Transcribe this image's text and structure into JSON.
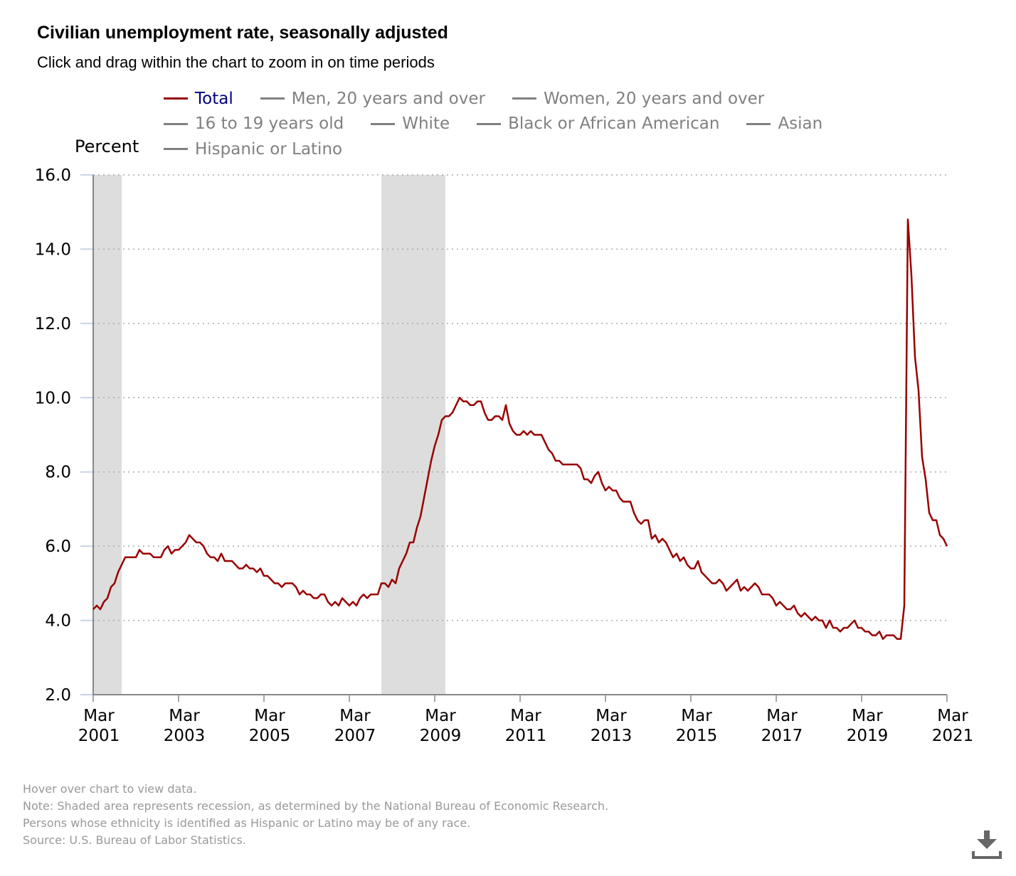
{
  "header": {
    "title": "Civilian unemployment rate, seasonally adjusted",
    "subtitle": "Click and drag within the chart to zoom in on time periods"
  },
  "legend": [
    {
      "label": "Total",
      "active": true
    },
    {
      "label": "Men, 20 years and over",
      "active": false
    },
    {
      "label": "Women, 20 years and over",
      "active": false
    },
    {
      "label": "16 to 19 years old",
      "active": false
    },
    {
      "label": "White",
      "active": false
    },
    {
      "label": "Black or African American",
      "active": false
    },
    {
      "label": "Asian",
      "active": false
    },
    {
      "label": "Hispanic or Latino",
      "active": false
    }
  ],
  "footer": {
    "lines": [
      "Hover over chart to view data.",
      "Note: Shaded area represents recession, as determined by the National Bureau of Economic Research.",
      "Persons whose ethnicity is identified as Hispanic or Latino may be of any race.",
      "Source: U.S. Bureau of Labor Statistics."
    ],
    "download_icon": "download-icon"
  },
  "colors": {
    "series": "#990000",
    "recession": "#dddddd",
    "legend_active": "#000080",
    "legend_inactive": "#808080"
  },
  "chart_data": {
    "type": "line",
    "title": "Civilian unemployment rate, seasonally adjusted",
    "ylabel": "Percent",
    "ylim": [
      2.0,
      16.0
    ],
    "yticks": [
      "2.0",
      "4.0",
      "6.0",
      "8.0",
      "10.0",
      "12.0",
      "14.0",
      "16.0"
    ],
    "xlim": [
      "2001-03",
      "2021-03"
    ],
    "xticks": [
      [
        "Mar",
        "2001"
      ],
      [
        "Mar",
        "2003"
      ],
      [
        "Mar",
        "2005"
      ],
      [
        "Mar",
        "2007"
      ],
      [
        "Mar",
        "2009"
      ],
      [
        "Mar",
        "2011"
      ],
      [
        "Mar",
        "2013"
      ],
      [
        "Mar",
        "2015"
      ],
      [
        "Mar",
        "2017"
      ],
      [
        "Mar",
        "2019"
      ],
      [
        "Mar",
        "2021"
      ]
    ],
    "grid": "horizontal dotted",
    "legend_placement": "top",
    "recessions": [
      [
        "2001-03",
        "2001-11"
      ],
      [
        "2007-12",
        "2009-06"
      ]
    ],
    "series": [
      {
        "name": "Total",
        "start": "2001-03",
        "frequency": "monthly",
        "values": [
          4.3,
          4.4,
          4.3,
          4.5,
          4.6,
          4.9,
          5.0,
          5.3,
          5.5,
          5.7,
          5.7,
          5.7,
          5.7,
          5.9,
          5.8,
          5.8,
          5.8,
          5.7,
          5.7,
          5.7,
          5.9,
          6.0,
          5.8,
          5.9,
          5.9,
          6.0,
          6.1,
          6.3,
          6.2,
          6.1,
          6.1,
          6.0,
          5.8,
          5.7,
          5.7,
          5.6,
          5.8,
          5.6,
          5.6,
          5.6,
          5.5,
          5.4,
          5.4,
          5.5,
          5.4,
          5.4,
          5.3,
          5.4,
          5.2,
          5.2,
          5.1,
          5.0,
          5.0,
          4.9,
          5.0,
          5.0,
          5.0,
          4.9,
          4.7,
          4.8,
          4.7,
          4.7,
          4.6,
          4.6,
          4.7,
          4.7,
          4.5,
          4.4,
          4.5,
          4.4,
          4.6,
          4.5,
          4.4,
          4.5,
          4.4,
          4.6,
          4.7,
          4.6,
          4.7,
          4.7,
          4.7,
          5.0,
          5.0,
          4.9,
          5.1,
          5.0,
          5.4,
          5.6,
          5.8,
          6.1,
          6.1,
          6.5,
          6.8,
          7.3,
          7.8,
          8.3,
          8.7,
          9.0,
          9.4,
          9.5,
          9.5,
          9.6,
          9.8,
          10.0,
          9.9,
          9.9,
          9.8,
          9.8,
          9.9,
          9.9,
          9.6,
          9.4,
          9.4,
          9.5,
          9.5,
          9.4,
          9.8,
          9.3,
          9.1,
          9.0,
          9.0,
          9.1,
          9.0,
          9.1,
          9.0,
          9.0,
          9.0,
          8.8,
          8.6,
          8.5,
          8.3,
          8.3,
          8.2,
          8.2,
          8.2,
          8.2,
          8.2,
          8.1,
          7.8,
          7.8,
          7.7,
          7.9,
          8.0,
          7.7,
          7.5,
          7.6,
          7.5,
          7.5,
          7.3,
          7.2,
          7.2,
          7.2,
          6.9,
          6.7,
          6.6,
          6.7,
          6.7,
          6.2,
          6.3,
          6.1,
          6.2,
          6.1,
          5.9,
          5.7,
          5.8,
          5.6,
          5.7,
          5.5,
          5.4,
          5.4,
          5.6,
          5.3,
          5.2,
          5.1,
          5.0,
          5.0,
          5.1,
          5.0,
          4.8,
          4.9,
          5.0,
          5.1,
          4.8,
          4.9,
          4.8,
          4.9,
          5.0,
          4.9,
          4.7,
          4.7,
          4.7,
          4.6,
          4.4,
          4.5,
          4.4,
          4.3,
          4.3,
          4.4,
          4.2,
          4.1,
          4.2,
          4.1,
          4.0,
          4.1,
          4.0,
          4.0,
          3.8,
          4.0,
          3.8,
          3.8,
          3.7,
          3.8,
          3.8,
          3.9,
          4.0,
          3.8,
          3.8,
          3.7,
          3.7,
          3.6,
          3.6,
          3.7,
          3.5,
          3.6,
          3.6,
          3.6,
          3.5,
          3.5,
          4.4,
          14.8,
          13.3,
          11.1,
          10.2,
          8.4,
          7.8,
          6.9,
          6.7,
          6.7,
          6.3,
          6.2,
          6.0
        ]
      }
    ]
  }
}
